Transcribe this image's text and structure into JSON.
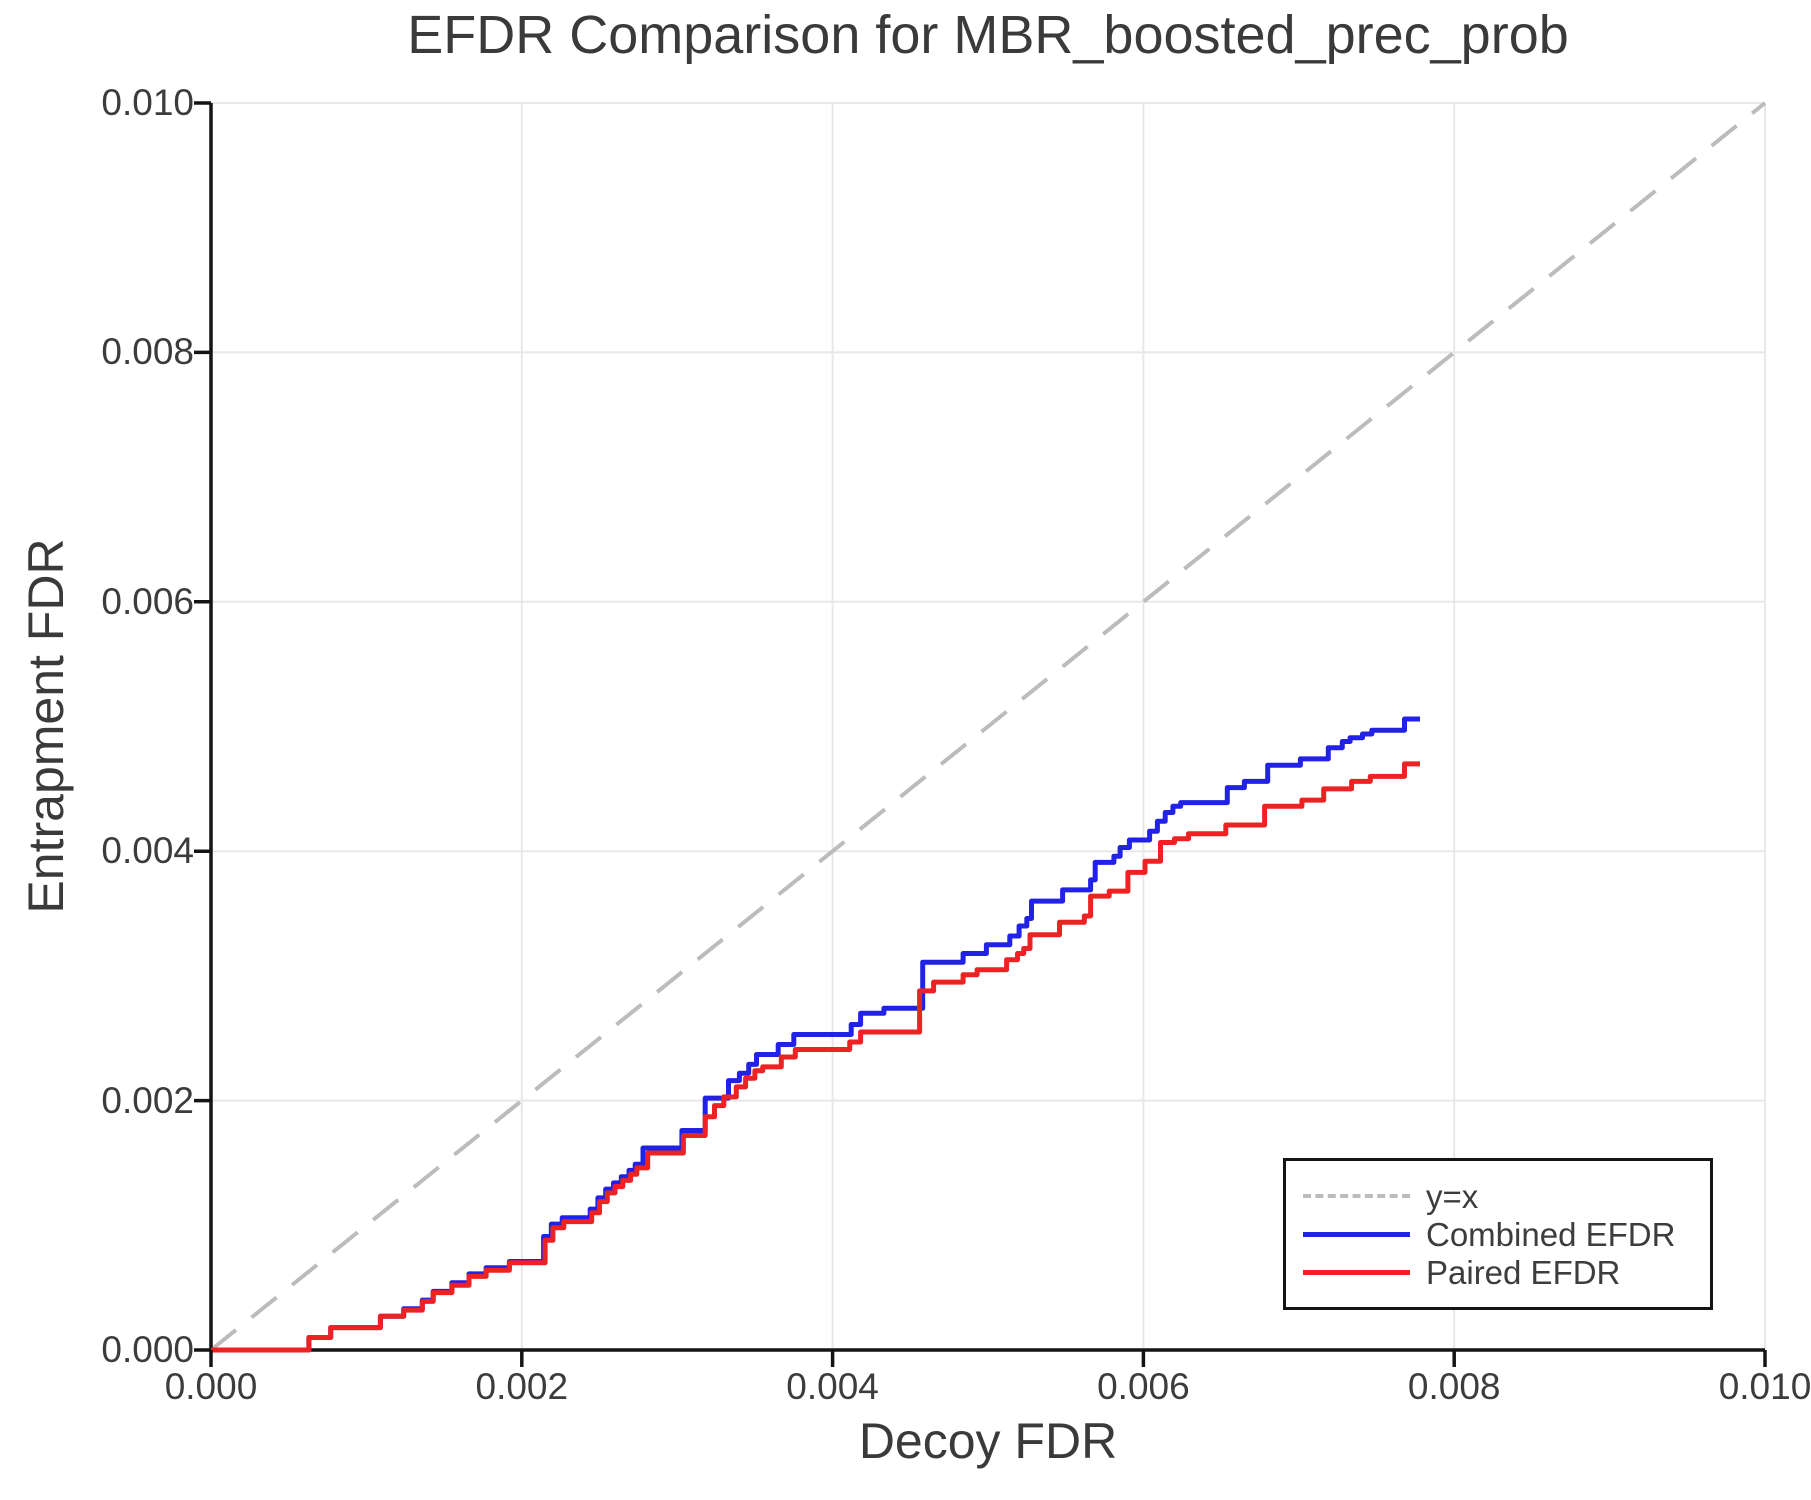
{
  "chart_data": {
    "type": "line",
    "title": "EFDR Comparison for MBR_boosted_prec_prob",
    "xlabel": "Decoy FDR",
    "ylabel": "Entrapment FDR",
    "xlim": [
      0.0,
      0.01
    ],
    "ylim": [
      0.0,
      0.01
    ],
    "xticks": [
      0.0,
      0.002,
      0.004,
      0.006,
      0.008,
      0.01
    ],
    "x_tick_labels": [
      "0.000",
      "0.002",
      "0.004",
      "0.006",
      "0.008",
      "0.010"
    ],
    "yticks": [
      0.0,
      0.002,
      0.004,
      0.006,
      0.008,
      0.01
    ],
    "y_tick_labels": [
      "0.000",
      "0.002",
      "0.004",
      "0.006",
      "0.008",
      "0.010"
    ],
    "grid": true,
    "legend_position": "lower right",
    "reference_line": {
      "label": "y=x",
      "style": "dashed",
      "color": "#bcbcbc",
      "from": [
        0.0,
        0.0
      ],
      "to": [
        0.01,
        0.01
      ]
    },
    "series": [
      {
        "name": "Combined EFDR",
        "color": "#2222e6",
        "step": "post",
        "points": [
          [
            0.0,
            0
          ],
          [
            0.00063,
            0.0001
          ],
          [
            0.00077,
            0.00018
          ],
          [
            0.00109,
            0.00027
          ],
          [
            0.00124,
            0.00033
          ],
          [
            0.00136,
            0.0004
          ],
          [
            0.00143,
            0.00047
          ],
          [
            0.00155,
            0.00054
          ],
          [
            0.00166,
            0.00061
          ],
          [
            0.00177,
            0.00066
          ],
          [
            0.00192,
            0.00071
          ],
          [
            0.00214,
            0.00091
          ],
          [
            0.00219,
            0.00101
          ],
          [
            0.00226,
            0.00106
          ],
          [
            0.00244,
            0.00113
          ],
          [
            0.00249,
            0.00122
          ],
          [
            0.00254,
            0.00129
          ],
          [
            0.00259,
            0.00134
          ],
          [
            0.00264,
            0.00139
          ],
          [
            0.00269,
            0.00144
          ],
          [
            0.00273,
            0.00149
          ],
          [
            0.00278,
            0.00162
          ],
          [
            0.00303,
            0.00176
          ],
          [
            0.00318,
            0.00202
          ],
          [
            0.00333,
            0.00216
          ],
          [
            0.0034,
            0.00222
          ],
          [
            0.00346,
            0.00229
          ],
          [
            0.00351,
            0.00237
          ],
          [
            0.00365,
            0.00245
          ],
          [
            0.00375,
            0.00253
          ],
          [
            0.00412,
            0.00261
          ],
          [
            0.00418,
            0.0027
          ],
          [
            0.00433,
            0.00274
          ],
          [
            0.00458,
            0.00311
          ],
          [
            0.00484,
            0.00318
          ],
          [
            0.00499,
            0.00325
          ],
          [
            0.00514,
            0.00332
          ],
          [
            0.0052,
            0.0034
          ],
          [
            0.00525,
            0.00346
          ],
          [
            0.00528,
            0.0036
          ],
          [
            0.00548,
            0.00369
          ],
          [
            0.00566,
            0.00377
          ],
          [
            0.00569,
            0.00391
          ],
          [
            0.00581,
            0.00396
          ],
          [
            0.00585,
            0.00403
          ],
          [
            0.00591,
            0.00409
          ],
          [
            0.00604,
            0.00416
          ],
          [
            0.00609,
            0.00424
          ],
          [
            0.00614,
            0.00431
          ],
          [
            0.00619,
            0.00436
          ],
          [
            0.00624,
            0.00439
          ],
          [
            0.00654,
            0.00451
          ],
          [
            0.00665,
            0.00456
          ],
          [
            0.0068,
            0.00469
          ],
          [
            0.00701,
            0.00474
          ],
          [
            0.00719,
            0.00483
          ],
          [
            0.00728,
            0.00488
          ],
          [
            0.00733,
            0.00491
          ],
          [
            0.00741,
            0.00494
          ],
          [
            0.00747,
            0.00497
          ],
          [
            0.00768,
            0.00506
          ],
          [
            0.00778,
            0.00506
          ]
        ]
      },
      {
        "name": "Paired EFDR",
        "color": "#ee2222",
        "step": "post",
        "points": [
          [
            0.0,
            0
          ],
          [
            0.00063,
            0.0001
          ],
          [
            0.00077,
            0.00018
          ],
          [
            0.00109,
            0.00027
          ],
          [
            0.00124,
            0.00032
          ],
          [
            0.00136,
            0.00039
          ],
          [
            0.00143,
            0.00046
          ],
          [
            0.00155,
            0.00052
          ],
          [
            0.00166,
            0.00059
          ],
          [
            0.00177,
            0.00064
          ],
          [
            0.00192,
            0.0007
          ],
          [
            0.00215,
            0.00088
          ],
          [
            0.0022,
            0.00098
          ],
          [
            0.00227,
            0.00103
          ],
          [
            0.00245,
            0.0011
          ],
          [
            0.0025,
            0.00119
          ],
          [
            0.00255,
            0.00126
          ],
          [
            0.0026,
            0.00131
          ],
          [
            0.00265,
            0.00136
          ],
          [
            0.0027,
            0.00141
          ],
          [
            0.00274,
            0.00146
          ],
          [
            0.00281,
            0.00158
          ],
          [
            0.00304,
            0.00172
          ],
          [
            0.00318,
            0.00187
          ],
          [
            0.00324,
            0.00196
          ],
          [
            0.0033,
            0.00203
          ],
          [
            0.00338,
            0.00211
          ],
          [
            0.00344,
            0.00218
          ],
          [
            0.0035,
            0.00224
          ],
          [
            0.00355,
            0.00227
          ],
          [
            0.00367,
            0.00235
          ],
          [
            0.00376,
            0.00241
          ],
          [
            0.00411,
            0.00247
          ],
          [
            0.00418,
            0.00255
          ],
          [
            0.00456,
            0.00288
          ],
          [
            0.00465,
            0.00295
          ],
          [
            0.00484,
            0.00301
          ],
          [
            0.00493,
            0.00305
          ],
          [
            0.00512,
            0.00313
          ],
          [
            0.00519,
            0.00318
          ],
          [
            0.00523,
            0.00322
          ],
          [
            0.00527,
            0.00333
          ],
          [
            0.00546,
            0.00343
          ],
          [
            0.00562,
            0.00348
          ],
          [
            0.00566,
            0.00364
          ],
          [
            0.00578,
            0.00368
          ],
          [
            0.0059,
            0.00383
          ],
          [
            0.00601,
            0.00392
          ],
          [
            0.00611,
            0.00407
          ],
          [
            0.0062,
            0.0041
          ],
          [
            0.00629,
            0.00414
          ],
          [
            0.00653,
            0.00421
          ],
          [
            0.00678,
            0.00436
          ],
          [
            0.00702,
            0.00441
          ],
          [
            0.00716,
            0.0045
          ],
          [
            0.00734,
            0.00456
          ],
          [
            0.00746,
            0.0046
          ],
          [
            0.00768,
            0.0047
          ],
          [
            0.00778,
            0.0047
          ]
        ]
      }
    ],
    "appearance": {
      "text_color": "#3a3a3a",
      "tick_label_color": "#3c3c3c",
      "grid_color": "#e8e8e8",
      "spine_color": "#141414",
      "background": "#ffffff"
    }
  }
}
